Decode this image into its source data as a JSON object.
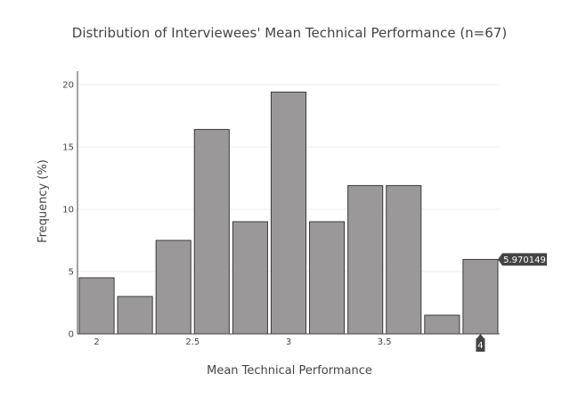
{
  "chart_data": {
    "type": "bar",
    "title": "Distribution of Interviewees' Mean Technical Performance (n=67)",
    "xlabel": "Mean Technical Performance",
    "ylabel": "Frequency (%)",
    "bin_width": 0.2,
    "bins": [
      1.9,
      2.1,
      2.3,
      2.5,
      2.7,
      2.9,
      3.1,
      3.3,
      3.5,
      3.7,
      3.9
    ],
    "values": [
      4.5,
      3.0,
      7.5,
      16.4,
      9.0,
      19.4,
      9.0,
      11.9,
      11.9,
      1.5,
      5.970149
    ],
    "xlim": [
      1.9,
      4.1
    ],
    "ylim": [
      0,
      20.5
    ],
    "x_ticks": [
      2,
      2.5,
      3,
      3.5
    ],
    "x_tick_labels": [
      "2",
      "2.5",
      "3",
      "3.5"
    ],
    "y_ticks": [
      0,
      5,
      10,
      15,
      20
    ],
    "y_tick_labels": [
      "0",
      "5",
      "10",
      "15",
      "20"
    ],
    "grid": true,
    "bar_color": "#9a9898",
    "bar_edge_color": "#3a3a3a",
    "hover": {
      "bin": 3.9,
      "y_value": 5.970149,
      "y_label": "5.970149",
      "x_label": "4"
    }
  }
}
